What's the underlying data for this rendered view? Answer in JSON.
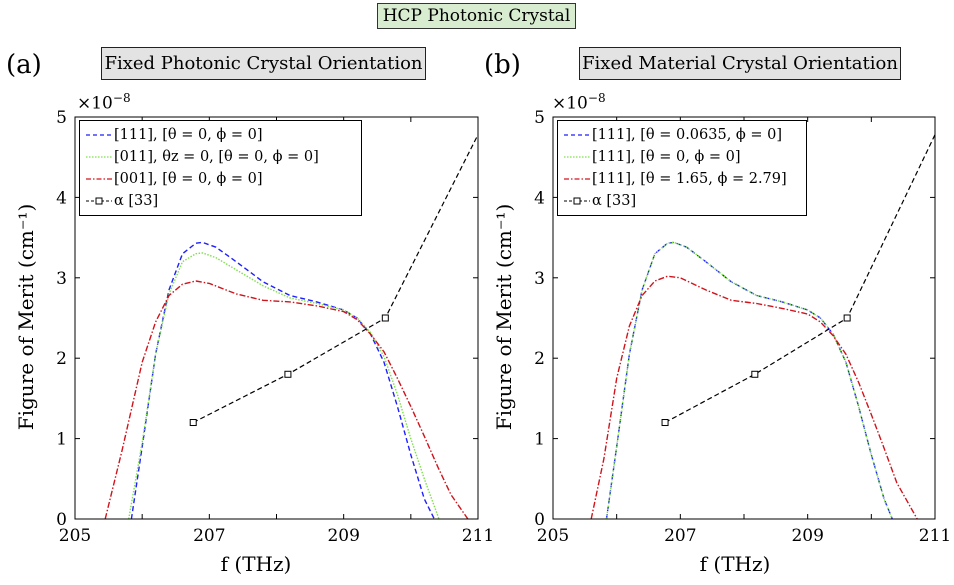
{
  "banner": "HCP Photonic Crystal",
  "panels": [
    {
      "letter": "(a)",
      "title": "Fixed Photonic Crystal Orientation",
      "exponent": "×10",
      "exponent_power": "−8",
      "ylabel": "Figure of Merit (cm⁻¹)",
      "xlabel": "f (THz)",
      "legend": [
        "[111],  [θ = 0, ϕ = 0]",
        "[011], θz = 0,  [θ = 0, ϕ = 0]",
        "[001],  [θ = 0, ϕ = 0]",
        "α [33]"
      ]
    },
    {
      "letter": "(b)",
      "title": "Fixed Material Crystal Orientation",
      "exponent": "×10",
      "exponent_power": "−8",
      "ylabel": "Figure of Merit (cm⁻¹)",
      "xlabel": "f (THz)",
      "legend": [
        "[111],  [θ = 0.0635, ϕ = 0]",
        "[111],  [θ = 0, ϕ = 0]",
        "[111],  [θ = 1.65, ϕ = 2.79]",
        "α [33]"
      ]
    }
  ],
  "chart_data": [
    {
      "type": "line",
      "title": "Fixed Photonic Crystal Orientation",
      "xlabel": "f (THz)",
      "ylabel": "Figure of Merit (cm⁻¹)",
      "y_scale_factor": "×10^-8",
      "xlim": [
        205,
        211
      ],
      "ylim": [
        0,
        5
      ],
      "xticks": [
        205,
        207,
        209,
        211
      ],
      "yticks": [
        0,
        1,
        2,
        3,
        4,
        5
      ],
      "legend_position": "top-left",
      "grid": false,
      "series": [
        {
          "name": "[111],  [θ = 0, ϕ = 0]",
          "color": "#1f1fff",
          "style": "dashed",
          "x": [
            205.84,
            206.0,
            206.2,
            206.4,
            206.6,
            206.8,
            206.9,
            207.1,
            207.4,
            207.8,
            208.2,
            208.6,
            209.0,
            209.2,
            209.4,
            209.6,
            209.8,
            210.0,
            210.2,
            210.35
          ],
          "y": [
            0,
            0.9,
            2.05,
            2.85,
            3.3,
            3.43,
            3.44,
            3.38,
            3.2,
            2.95,
            2.78,
            2.7,
            2.6,
            2.5,
            2.3,
            1.95,
            1.4,
            0.8,
            0.25,
            0
          ]
        },
        {
          "name": "[011], θz = 0,  [θ = 0, ϕ = 0]",
          "color": "#7ee04a",
          "style": "dotted",
          "x": [
            205.8,
            206.0,
            206.2,
            206.4,
            206.6,
            206.8,
            206.9,
            207.1,
            207.4,
            207.8,
            208.2,
            208.6,
            209.0,
            209.2,
            209.4,
            209.6,
            209.8,
            210.0,
            210.2,
            210.42
          ],
          "y": [
            0,
            0.95,
            2.05,
            2.8,
            3.2,
            3.3,
            3.31,
            3.25,
            3.1,
            2.9,
            2.75,
            2.68,
            2.6,
            2.5,
            2.32,
            2.02,
            1.55,
            1.0,
            0.5,
            0
          ]
        },
        {
          "name": "[001],  [θ = 0, ϕ = 0]",
          "color": "#d0141c",
          "style": "dash-dot",
          "x": [
            205.45,
            205.7,
            206.0,
            206.2,
            206.4,
            206.6,
            206.8,
            207.0,
            207.4,
            207.8,
            208.2,
            208.6,
            209.0,
            209.2,
            209.4,
            209.6,
            209.8,
            210.0,
            210.2,
            210.4,
            210.6,
            210.85
          ],
          "y": [
            0,
            0.85,
            1.95,
            2.45,
            2.78,
            2.92,
            2.96,
            2.93,
            2.8,
            2.72,
            2.7,
            2.65,
            2.58,
            2.48,
            2.3,
            2.08,
            1.75,
            1.4,
            1.03,
            0.65,
            0.3,
            0
          ]
        },
        {
          "name": "α [33]",
          "color": "#000000",
          "style": "dashed",
          "marker": "square",
          "x": [
            206.76,
            208.17,
            209.62,
            211.0
          ],
          "y": [
            1.2,
            1.8,
            2.5,
            4.78
          ],
          "marked_points": 3
        }
      ]
    },
    {
      "type": "line",
      "title": "Fixed Material Crystal Orientation",
      "xlabel": "f (THz)",
      "ylabel": "Figure of Merit (cm⁻¹)",
      "y_scale_factor": "×10^-8",
      "xlim": [
        205,
        211
      ],
      "ylim": [
        0,
        5
      ],
      "xticks": [
        205,
        207,
        209,
        211
      ],
      "yticks": [
        0,
        1,
        2,
        3,
        4,
        5
      ],
      "legend_position": "top-left",
      "grid": false,
      "series": [
        {
          "name": "[111],  [θ = 0.0635, ϕ = 0]",
          "color": "#1f1fff",
          "style": "dashed",
          "x": [
            205.84,
            206.0,
            206.2,
            206.4,
            206.6,
            206.8,
            206.9,
            207.1,
            207.4,
            207.8,
            208.2,
            208.6,
            209.0,
            209.2,
            209.4,
            209.6,
            209.8,
            210.0,
            210.2,
            210.33
          ],
          "y": [
            0,
            0.9,
            2.05,
            2.85,
            3.3,
            3.43,
            3.44,
            3.38,
            3.2,
            2.95,
            2.78,
            2.7,
            2.6,
            2.5,
            2.3,
            1.95,
            1.4,
            0.8,
            0.25,
            0
          ]
        },
        {
          "name": "[111],  [θ = 0, ϕ = 0]",
          "color": "#7ee04a",
          "style": "dotted",
          "x": [
            205.84,
            206.0,
            206.2,
            206.4,
            206.6,
            206.8,
            206.9,
            207.1,
            207.4,
            207.8,
            208.2,
            208.6,
            209.0,
            209.2,
            209.4,
            209.6,
            209.8,
            210.0,
            210.2,
            210.33
          ],
          "y": [
            0,
            0.9,
            2.05,
            2.85,
            3.3,
            3.43,
            3.44,
            3.38,
            3.2,
            2.95,
            2.78,
            2.7,
            2.6,
            2.5,
            2.3,
            1.95,
            1.4,
            0.8,
            0.25,
            0
          ]
        },
        {
          "name": "[111],  [θ = 1.65, ϕ = 2.79]",
          "color": "#d0141c",
          "style": "dash-dot",
          "x": [
            205.6,
            205.8,
            206.0,
            206.2,
            206.4,
            206.6,
            206.8,
            207.0,
            207.4,
            207.8,
            208.2,
            208.6,
            209.0,
            209.2,
            209.4,
            209.6,
            209.8,
            210.0,
            210.2,
            210.4,
            210.72
          ],
          "y": [
            0,
            0.75,
            1.75,
            2.4,
            2.78,
            2.96,
            3.02,
            3.0,
            2.85,
            2.72,
            2.68,
            2.62,
            2.55,
            2.45,
            2.28,
            2.05,
            1.7,
            1.3,
            0.88,
            0.45,
            0
          ]
        },
        {
          "name": "α [33]",
          "color": "#000000",
          "style": "dashed",
          "marker": "square",
          "x": [
            206.76,
            208.17,
            209.62,
            211.0
          ],
          "y": [
            1.2,
            1.8,
            2.5,
            4.78
          ],
          "marked_points": 3
        }
      ]
    }
  ]
}
